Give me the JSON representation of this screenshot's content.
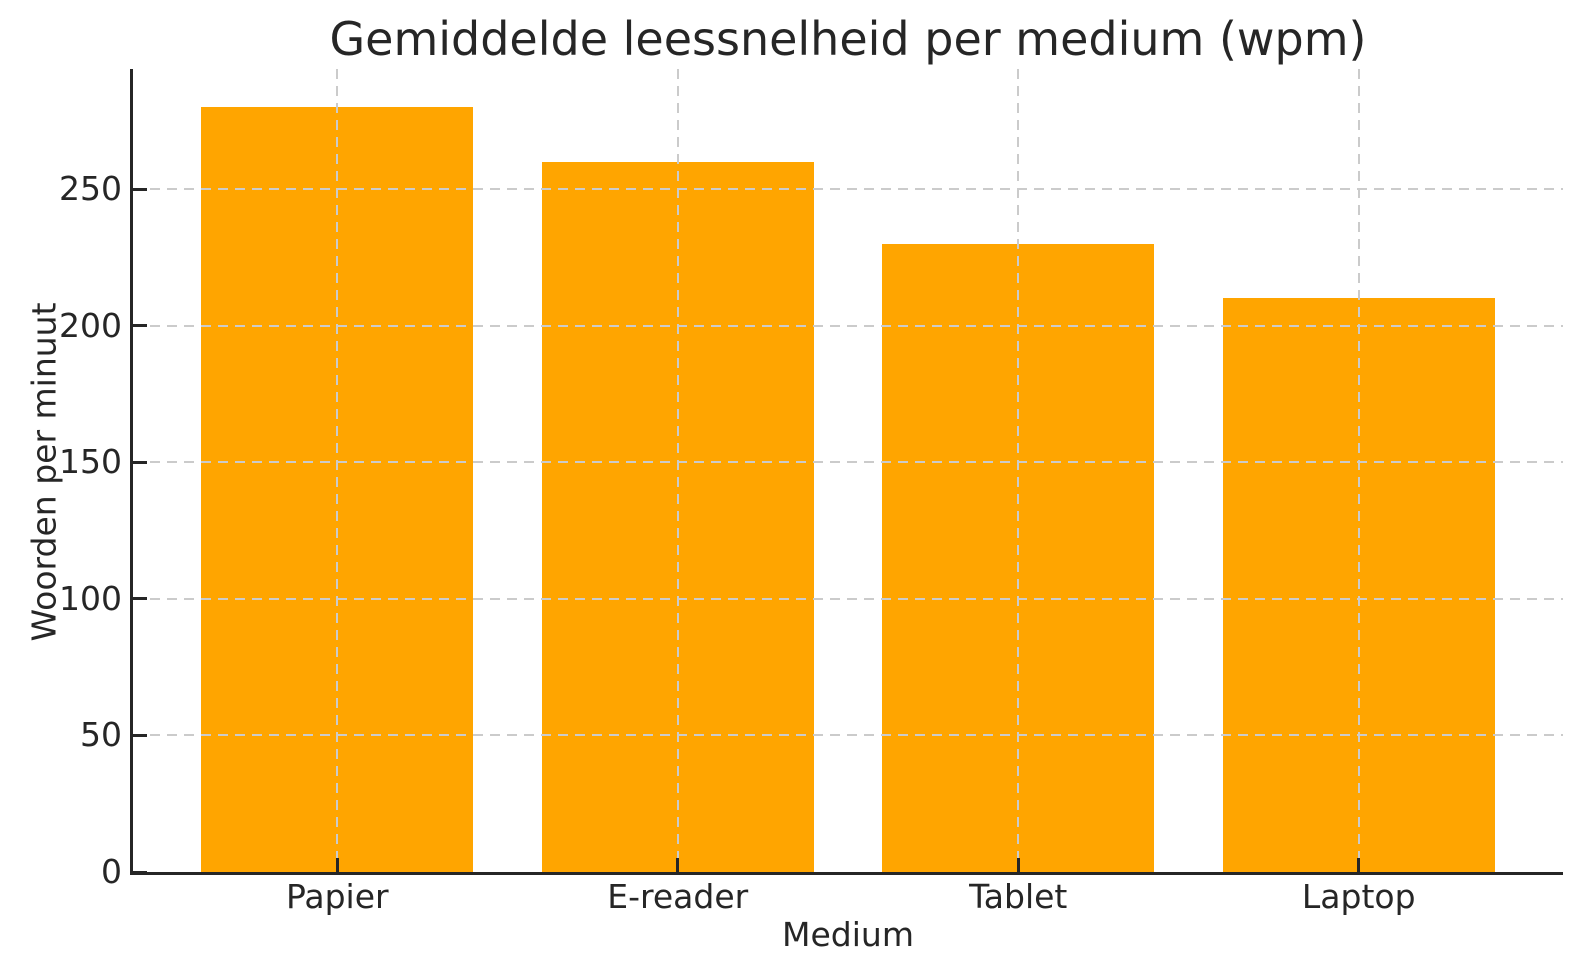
{
  "chart_data": {
    "type": "bar",
    "title": "Gemiddelde leessnelheid per medium (wpm)",
    "xlabel": "Medium",
    "ylabel": "Woorden per minuut",
    "categories": [
      "Papier",
      "E-reader",
      "Tablet",
      "Laptop"
    ],
    "values": [
      280,
      260,
      230,
      210
    ],
    "yticks": [
      0,
      50,
      100,
      150,
      200,
      250
    ],
    "ylim": [
      0,
      294
    ],
    "bar_color": "#FFA500",
    "grid_color": "#cbcbcb",
    "grid_style": "dashed",
    "grid_above_bars": true,
    "axis_color": "#262626",
    "text_color": "#262626",
    "background_color": "#ffffff",
    "legend": null
  }
}
